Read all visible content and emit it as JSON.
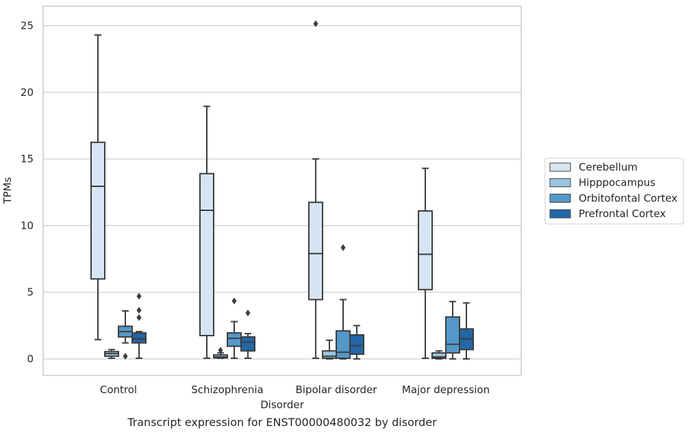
{
  "chart_data": {
    "type": "box",
    "title": "",
    "caption": "Transcript expression for ENST00000480032 by disorder",
    "xlabel": "Disorder",
    "ylabel": "TPMs",
    "ylim": [
      -1.2,
      26.2
    ],
    "yticks": [
      0,
      5,
      10,
      15,
      20,
      25
    ],
    "grid": "horizontal",
    "legend_position": "right",
    "categories": [
      "Control",
      "Schizophrenia",
      "Bipolar disorder",
      "Major depression"
    ],
    "series": [
      {
        "name": "Cerebellum",
        "color": "#d6e5f3",
        "boxes": [
          {
            "whisker_low": 1.45,
            "q1": 6.0,
            "median": 12.95,
            "q3": 16.25,
            "whisker_high": 24.3,
            "outliers": []
          },
          {
            "whisker_low": 0.05,
            "q1": 1.75,
            "median": 11.15,
            "q3": 13.9,
            "whisker_high": 18.95,
            "outliers": []
          },
          {
            "whisker_low": 0.05,
            "q1": 4.45,
            "median": 7.9,
            "q3": 11.75,
            "whisker_high": 15.0,
            "outliers": [
              25.15
            ]
          },
          {
            "whisker_low": 0.05,
            "q1": 5.2,
            "median": 7.85,
            "q3": 11.1,
            "whisker_high": 14.3,
            "outliers": []
          }
        ]
      },
      {
        "name": "Hipppocampus",
        "color": "#9ac5df",
        "boxes": [
          {
            "whisker_low": 0.05,
            "q1": 0.2,
            "median": 0.4,
            "q3": 0.55,
            "whisker_high": 0.7,
            "outliers": []
          },
          {
            "whisker_low": 0.05,
            "q1": 0.08,
            "median": 0.15,
            "q3": 0.3,
            "whisker_high": 0.45,
            "outliers": [
              0.65
            ]
          },
          {
            "whisker_low": 0.0,
            "q1": 0.05,
            "median": 0.2,
            "q3": 0.6,
            "whisker_high": 1.4,
            "outliers": []
          },
          {
            "whisker_low": 0.0,
            "q1": 0.05,
            "median": 0.15,
            "q3": 0.45,
            "whisker_high": 0.6,
            "outliers": []
          }
        ]
      },
      {
        "name": "Orbitofontal Cortex",
        "color": "#5498c9",
        "boxes": [
          {
            "whisker_low": 1.2,
            "q1": 1.65,
            "median": 2.05,
            "q3": 2.45,
            "whisker_high": 3.6,
            "outliers": [
              0.2
            ]
          },
          {
            "whisker_low": 0.05,
            "q1": 0.95,
            "median": 1.55,
            "q3": 1.95,
            "whisker_high": 2.8,
            "outliers": [
              4.35
            ]
          },
          {
            "whisker_low": 0.0,
            "q1": 0.05,
            "median": 0.5,
            "q3": 2.1,
            "whisker_high": 4.45,
            "outliers": [
              8.35
            ]
          },
          {
            "whisker_low": 0.0,
            "q1": 0.45,
            "median": 1.1,
            "q3": 3.15,
            "whisker_high": 4.3,
            "outliers": []
          }
        ]
      },
      {
        "name": "Prefrontal Cortex",
        "color": "#2466a8",
        "boxes": [
          {
            "whisker_low": 0.05,
            "q1": 1.2,
            "median": 1.5,
            "q3": 1.95,
            "whisker_high": 2.05,
            "outliers": [
              4.7,
              3.65,
              3.1
            ]
          },
          {
            "whisker_low": 0.05,
            "q1": 0.6,
            "median": 1.25,
            "q3": 1.65,
            "whisker_high": 1.9,
            "outliers": [
              3.45
            ]
          },
          {
            "whisker_low": 0.0,
            "q1": 0.35,
            "median": 1.0,
            "q3": 1.8,
            "whisker_high": 2.5,
            "outliers": []
          },
          {
            "whisker_low": 0.0,
            "q1": 0.7,
            "median": 1.5,
            "q3": 2.25,
            "whisker_high": 4.2,
            "outliers": []
          }
        ]
      }
    ]
  }
}
